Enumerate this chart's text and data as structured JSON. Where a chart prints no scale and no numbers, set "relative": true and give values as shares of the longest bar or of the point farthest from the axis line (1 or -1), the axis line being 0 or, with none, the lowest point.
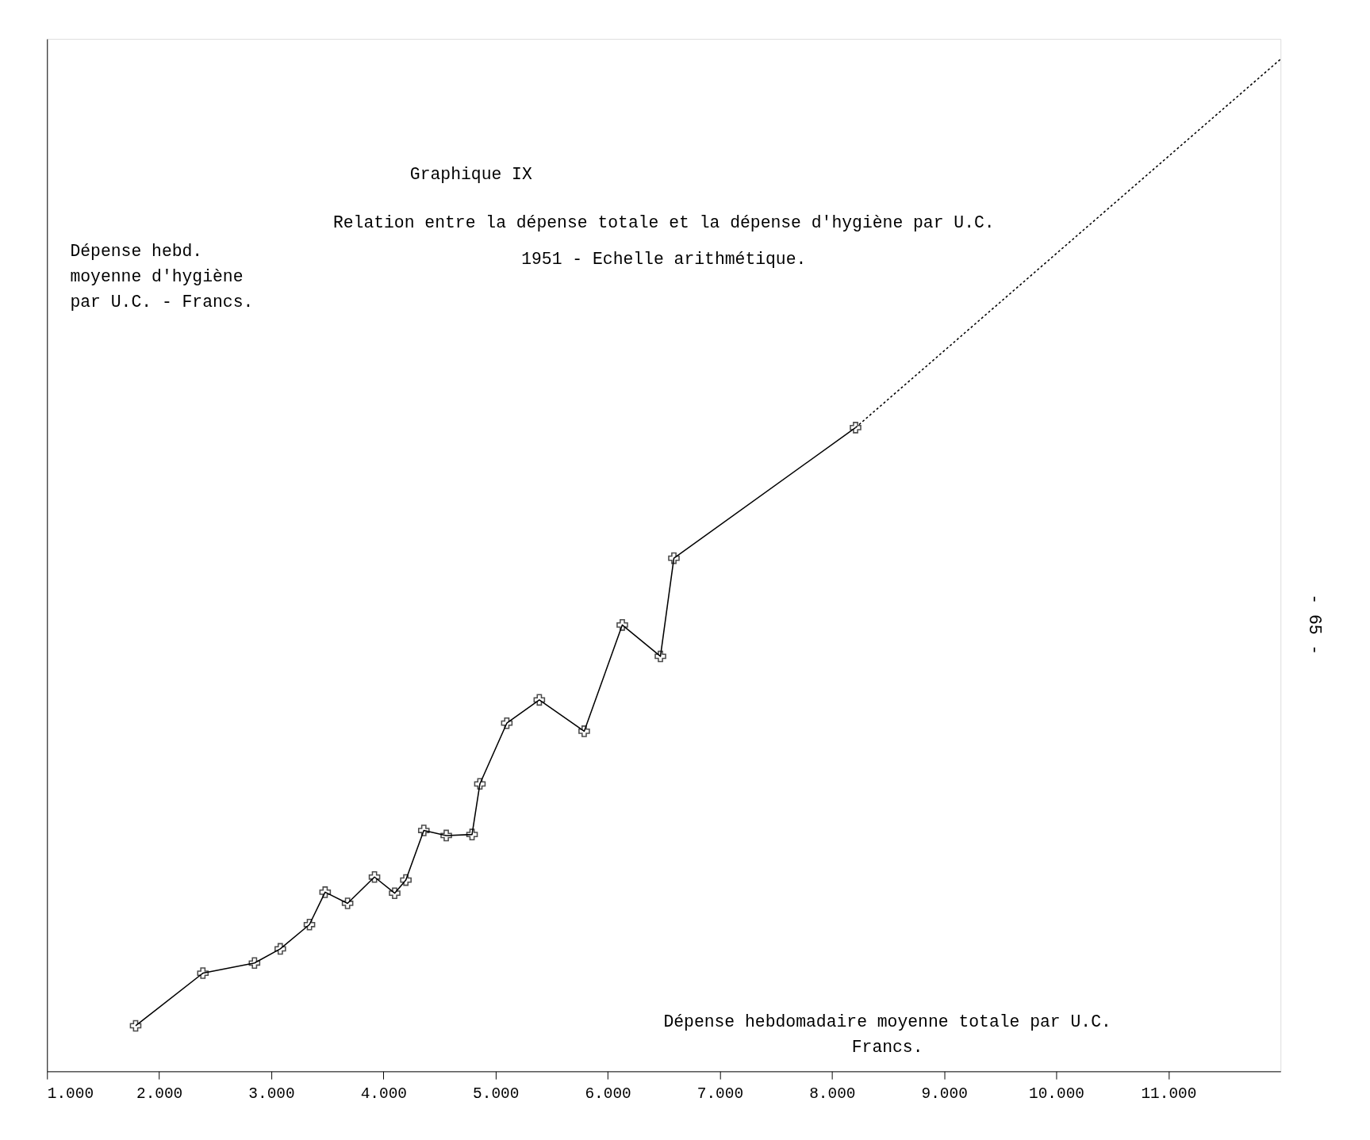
{
  "chart_data": {
    "type": "line",
    "title": "Graphique  IX",
    "subtitle": [
      "Relation entre la dépense totale et la dépense d'hygiène par U.C.",
      "1951 - Echelle arithmétique."
    ],
    "xlabel": "Dépense hebdomadaire moyenne totale par U.C.\nFrancs.",
    "ylabel": "Dépense hebd.\nmoyenne d'hygiène\npar U.C. - Francs.",
    "annotations": [
      "- 65 -"
    ],
    "relative": true,
    "xlim": [
      1000,
      12000
    ],
    "xticks": [
      {
        "value": 1000,
        "label": "1.000"
      },
      {
        "value": 2000,
        "label": "2.000"
      },
      {
        "value": 3000,
        "label": "3.000"
      },
      {
        "value": 4000,
        "label": "4.000"
      },
      {
        "value": 5000,
        "label": "5.000"
      },
      {
        "value": 6000,
        "label": "6.000"
      },
      {
        "value": 7000,
        "label": "7.000"
      },
      {
        "value": 8000,
        "label": "8.000"
      },
      {
        "value": 9000,
        "label": "9.000"
      },
      {
        "value": 10000,
        "label": "10.000"
      },
      {
        "value": 11000,
        "label": "11.000"
      }
    ],
    "grid": false,
    "series": [
      {
        "color": "#000000",
        "marker": "cross",
        "line_style": "solid",
        "x": [
          1790,
          2390,
          2850,
          3080,
          3340,
          3480,
          3680,
          3920,
          4100,
          4200,
          4360,
          4560,
          4790,
          4860,
          5100,
          5390,
          5790,
          6130,
          6470,
          6590,
          8210
        ],
        "values": [
          0.045,
          0.097,
          0.107,
          0.121,
          0.145,
          0.177,
          0.166,
          0.192,
          0.176,
          0.189,
          0.238,
          0.233,
          0.234,
          0.284,
          0.344,
          0.367,
          0.336,
          0.441,
          0.41,
          0.507,
          0.636
        ]
      },
      {
        "color": "#000000",
        "marker": "none",
        "line_style": "dotted",
        "x": [
          8210,
          12000
        ],
        "values": [
          0.636,
          1.0
        ]
      }
    ]
  }
}
